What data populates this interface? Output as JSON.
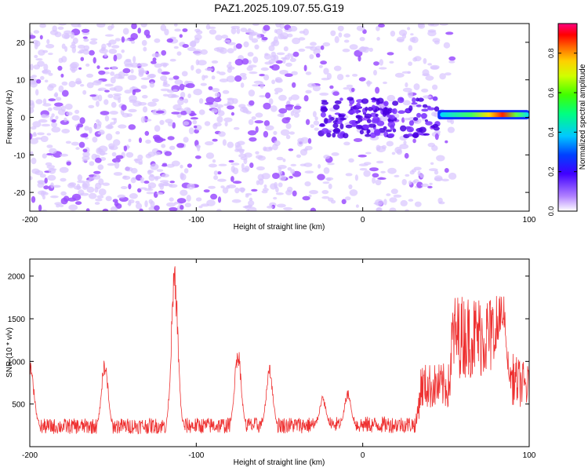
{
  "title": "PAZ1.2025.109.07.55.G19",
  "chart_data": [
    {
      "type": "heatmap",
      "xlabel": "Height of straight line (km)",
      "ylabel": "Frequency (Hz)",
      "xlim": [
        -200,
        100
      ],
      "ylim": [
        -25,
        25
      ],
      "xticks": [
        "-200",
        "-100",
        "0",
        "100"
      ],
      "yticks": [
        "-20",
        "-10",
        "0",
        "10",
        "20"
      ],
      "colorbar": {
        "label": "Normalized spectral amplitude",
        "range": [
          0.0,
          0.95
        ],
        "ticks": [
          "0.0",
          "0.2",
          "0.4",
          "0.6",
          "0.8"
        ]
      },
      "features": [
        {
          "region": "noise",
          "x_range": [
            -200,
            45
          ],
          "y_range": [
            -25,
            25
          ]
        },
        {
          "region": "signal-band",
          "x_range": [
            45,
            100
          ],
          "frequency": 0.7,
          "max_amplitude": 0.9
        }
      ],
      "colors": {
        "noise": "#9b4dff",
        "noise_light": "#d8c4ff"
      }
    },
    {
      "type": "line",
      "xlabel": "Height of straight line (km)",
      "ylabel": "SNR (10 * v/v)",
      "xlim": [
        -200,
        100
      ],
      "ylim": [
        0,
        2200
      ],
      "xticks": [
        "-200",
        "-100",
        "0",
        "100"
      ],
      "yticks": [
        "500",
        "1000",
        "1500",
        "2000"
      ],
      "color": "#ee3030",
      "series": [
        {
          "baseline": [
            [
              -200,
              200
            ],
            [
              32,
              220
            ],
            [
              35,
              600
            ],
            [
              52,
              600
            ],
            [
              54,
              1100
            ],
            [
              85,
              1100
            ],
            [
              87,
              700
            ],
            [
              100,
              580
            ]
          ],
          "peaks": [
            [
              -200,
              1000
            ],
            [
              -155,
              1050
            ],
            [
              -113,
              2150
            ],
            [
              -75,
              1200
            ],
            [
              -56,
              980
            ],
            [
              -24,
              600
            ],
            [
              -9,
              670
            ],
            [
              84,
              1520
            ]
          ]
        }
      ]
    }
  ]
}
